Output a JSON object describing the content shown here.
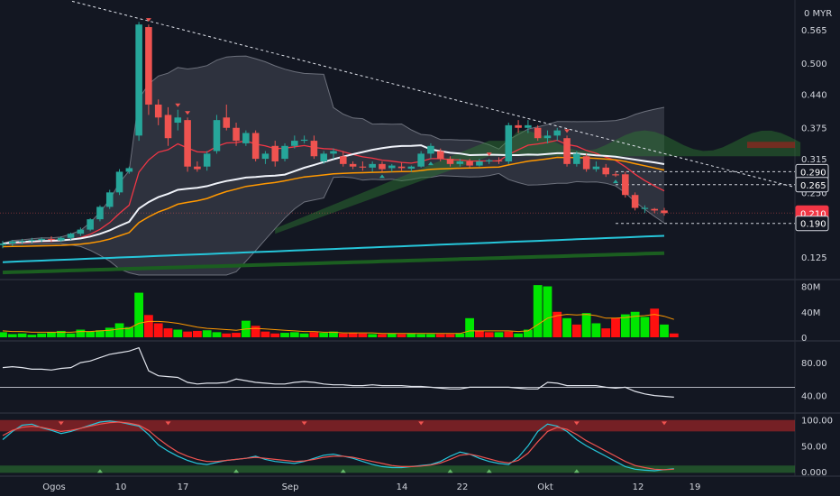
{
  "chart_data": [
    {
      "type": "candlestick",
      "pane": "price",
      "currency": "MYR",
      "yticks": [
        "0.565",
        "0.500",
        "0.440",
        "0.375",
        "0.315",
        "0.250",
        "0.190",
        "0.125"
      ],
      "ylim": [
        0.09,
        0.605
      ],
      "x_labels": [
        "Ogos",
        "10",
        "17",
        "Sep",
        "14",
        "22",
        "Okt",
        "12",
        "19"
      ],
      "price_tags": [
        {
          "label": "0.290",
          "value": 0.29,
          "style": "dark"
        },
        {
          "label": "0.265",
          "value": 0.265,
          "style": "dark"
        },
        {
          "label": "0.210",
          "value": 0.21,
          "style": "last"
        },
        {
          "label": "0.190",
          "value": 0.19,
          "style": "dark"
        }
      ],
      "candles": [
        {
          "o": 0.148,
          "h": 0.156,
          "l": 0.142,
          "c": 0.151,
          "up": true
        },
        {
          "o": 0.151,
          "h": 0.158,
          "l": 0.146,
          "c": 0.155,
          "up": true
        },
        {
          "o": 0.154,
          "h": 0.16,
          "l": 0.149,
          "c": 0.156,
          "up": true
        },
        {
          "o": 0.156,
          "h": 0.162,
          "l": 0.151,
          "c": 0.158,
          "up": true
        },
        {
          "o": 0.158,
          "h": 0.163,
          "l": 0.153,
          "c": 0.16,
          "up": true
        },
        {
          "o": 0.16,
          "h": 0.165,
          "l": 0.154,
          "c": 0.158,
          "up": false
        },
        {
          "o": 0.157,
          "h": 0.165,
          "l": 0.154,
          "c": 0.162,
          "up": true
        },
        {
          "o": 0.162,
          "h": 0.172,
          "l": 0.158,
          "c": 0.17,
          "up": true
        },
        {
          "o": 0.17,
          "h": 0.182,
          "l": 0.166,
          "c": 0.178,
          "up": true
        },
        {
          "o": 0.178,
          "h": 0.2,
          "l": 0.175,
          "c": 0.198,
          "up": true
        },
        {
          "o": 0.198,
          "h": 0.225,
          "l": 0.194,
          "c": 0.222,
          "up": true
        },
        {
          "o": 0.222,
          "h": 0.255,
          "l": 0.218,
          "c": 0.25,
          "up": true
        },
        {
          "o": 0.25,
          "h": 0.295,
          "l": 0.245,
          "c": 0.29,
          "up": true
        },
        {
          "o": 0.29,
          "h": 0.3,
          "l": 0.286,
          "c": 0.297,
          "up": true
        },
        {
          "o": 0.36,
          "h": 0.58,
          "l": 0.35,
          "c": 0.575,
          "up": true
        },
        {
          "o": 0.57,
          "h": 0.575,
          "l": 0.4,
          "c": 0.42,
          "up": false
        },
        {
          "o": 0.42,
          "h": 0.43,
          "l": 0.38,
          "c": 0.395,
          "up": false
        },
        {
          "o": 0.4,
          "h": 0.415,
          "l": 0.34,
          "c": 0.355,
          "up": false
        },
        {
          "o": 0.385,
          "h": 0.41,
          "l": 0.37,
          "c": 0.395,
          "up": true
        },
        {
          "o": 0.39,
          "h": 0.395,
          "l": 0.29,
          "c": 0.3,
          "up": false
        },
        {
          "o": 0.3,
          "h": 0.31,
          "l": 0.29,
          "c": 0.295,
          "up": false
        },
        {
          "o": 0.3,
          "h": 0.33,
          "l": 0.292,
          "c": 0.325,
          "up": true
        },
        {
          "o": 0.33,
          "h": 0.4,
          "l": 0.325,
          "c": 0.39,
          "up": true
        },
        {
          "o": 0.395,
          "h": 0.42,
          "l": 0.37,
          "c": 0.375,
          "up": false
        },
        {
          "o": 0.375,
          "h": 0.385,
          "l": 0.34,
          "c": 0.35,
          "up": false
        },
        {
          "o": 0.345,
          "h": 0.37,
          "l": 0.34,
          "c": 0.365,
          "up": true
        },
        {
          "o": 0.365,
          "h": 0.37,
          "l": 0.31,
          "c": 0.315,
          "up": false
        },
        {
          "o": 0.315,
          "h": 0.33,
          "l": 0.305,
          "c": 0.325,
          "up": true
        },
        {
          "o": 0.34,
          "h": 0.35,
          "l": 0.3,
          "c": 0.31,
          "up": false
        },
        {
          "o": 0.315,
          "h": 0.345,
          "l": 0.31,
          "c": 0.34,
          "up": true
        },
        {
          "o": 0.34,
          "h": 0.36,
          "l": 0.335,
          "c": 0.35,
          "up": true
        },
        {
          "o": 0.35,
          "h": 0.36,
          "l": 0.345,
          "c": 0.352,
          "up": true
        },
        {
          "o": 0.35,
          "h": 0.36,
          "l": 0.315,
          "c": 0.32,
          "up": false
        },
        {
          "o": 0.31,
          "h": 0.33,
          "l": 0.305,
          "c": 0.325,
          "up": true
        },
        {
          "o": 0.325,
          "h": 0.335,
          "l": 0.315,
          "c": 0.33,
          "up": true
        },
        {
          "o": 0.32,
          "h": 0.33,
          "l": 0.3,
          "c": 0.305,
          "up": false
        },
        {
          "o": 0.305,
          "h": 0.31,
          "l": 0.295,
          "c": 0.3,
          "up": false
        },
        {
          "o": 0.3,
          "h": 0.31,
          "l": 0.292,
          "c": 0.298,
          "up": false
        },
        {
          "o": 0.298,
          "h": 0.31,
          "l": 0.29,
          "c": 0.305,
          "up": true
        },
        {
          "o": 0.305,
          "h": 0.31,
          "l": 0.29,
          "c": 0.295,
          "up": false
        },
        {
          "o": 0.297,
          "h": 0.305,
          "l": 0.29,
          "c": 0.302,
          "up": true
        },
        {
          "o": 0.3,
          "h": 0.308,
          "l": 0.292,
          "c": 0.297,
          "up": false
        },
        {
          "o": 0.296,
          "h": 0.302,
          "l": 0.29,
          "c": 0.3,
          "up": true
        },
        {
          "o": 0.3,
          "h": 0.33,
          "l": 0.298,
          "c": 0.325,
          "up": true
        },
        {
          "o": 0.325,
          "h": 0.345,
          "l": 0.315,
          "c": 0.34,
          "up": true
        },
        {
          "o": 0.33,
          "h": 0.335,
          "l": 0.31,
          "c": 0.315,
          "up": false
        },
        {
          "o": 0.315,
          "h": 0.32,
          "l": 0.3,
          "c": 0.305,
          "up": false
        },
        {
          "o": 0.305,
          "h": 0.315,
          "l": 0.3,
          "c": 0.31,
          "up": true
        },
        {
          "o": 0.31,
          "h": 0.315,
          "l": 0.298,
          "c": 0.302,
          "up": false
        },
        {
          "o": 0.302,
          "h": 0.315,
          "l": 0.3,
          "c": 0.31,
          "up": true
        },
        {
          "o": 0.31,
          "h": 0.315,
          "l": 0.305,
          "c": 0.312,
          "up": true
        },
        {
          "o": 0.312,
          "h": 0.318,
          "l": 0.305,
          "c": 0.31,
          "up": false
        },
        {
          "o": 0.31,
          "h": 0.385,
          "l": 0.305,
          "c": 0.38,
          "up": true
        },
        {
          "o": 0.38,
          "h": 0.39,
          "l": 0.365,
          "c": 0.375,
          "up": false
        },
        {
          "o": 0.375,
          "h": 0.39,
          "l": 0.365,
          "c": 0.38,
          "up": true
        },
        {
          "o": 0.375,
          "h": 0.38,
          "l": 0.35,
          "c": 0.355,
          "up": false
        },
        {
          "o": 0.355,
          "h": 0.37,
          "l": 0.345,
          "c": 0.36,
          "up": true
        },
        {
          "o": 0.36,
          "h": 0.375,
          "l": 0.35,
          "c": 0.37,
          "up": true
        },
        {
          "o": 0.355,
          "h": 0.36,
          "l": 0.3,
          "c": 0.305,
          "up": false
        },
        {
          "o": 0.305,
          "h": 0.33,
          "l": 0.3,
          "c": 0.325,
          "up": true
        },
        {
          "o": 0.32,
          "h": 0.325,
          "l": 0.29,
          "c": 0.295,
          "up": false
        },
        {
          "o": 0.295,
          "h": 0.31,
          "l": 0.29,
          "c": 0.3,
          "up": true
        },
        {
          "o": 0.298,
          "h": 0.305,
          "l": 0.28,
          "c": 0.285,
          "up": false
        },
        {
          "o": 0.285,
          "h": 0.29,
          "l": 0.28,
          "c": 0.283,
          "up": false
        },
        {
          "o": 0.285,
          "h": 0.29,
          "l": 0.24,
          "c": 0.245,
          "up": false
        },
        {
          "o": 0.245,
          "h": 0.25,
          "l": 0.215,
          "c": 0.22,
          "up": false
        },
        {
          "o": 0.22,
          "h": 0.225,
          "l": 0.21,
          "c": 0.218,
          "up": true
        },
        {
          "o": 0.218,
          "h": 0.22,
          "l": 0.21,
          "c": 0.215,
          "up": false
        },
        {
          "o": 0.215,
          "h": 0.22,
          "l": 0.205,
          "c": 0.21,
          "up": false
        }
      ]
    },
    {
      "type": "bar",
      "pane": "volume",
      "yticks": [
        "80M",
        "40M",
        "0"
      ],
      "ylim": [
        0,
        85
      ],
      "values": [
        8,
        5,
        6,
        4,
        6,
        8,
        10,
        6,
        12,
        9,
        11,
        15,
        22,
        16,
        70,
        35,
        22,
        14,
        12,
        9,
        10,
        11,
        8,
        6,
        7,
        26,
        18,
        9,
        6,
        7,
        8,
        6,
        8,
        7,
        9,
        6,
        7,
        6,
        5,
        5,
        6,
        5,
        6,
        5,
        5,
        5,
        5,
        6,
        30,
        10,
        8,
        8,
        9,
        6,
        12,
        82,
        80,
        40,
        30,
        20,
        38,
        22,
        14,
        30,
        36,
        40,
        32,
        45,
        20,
        6
      ],
      "up": [
        true,
        true,
        true,
        true,
        true,
        true,
        true,
        true,
        true,
        true,
        true,
        true,
        true,
        true,
        true,
        false,
        false,
        false,
        true,
        false,
        false,
        true,
        true,
        false,
        false,
        true,
        false,
        false,
        false,
        true,
        true,
        true,
        false,
        true,
        true,
        false,
        false,
        false,
        true,
        false,
        true,
        false,
        true,
        true,
        true,
        false,
        false,
        true,
        true,
        false,
        false,
        true,
        false,
        true,
        true,
        true,
        true,
        false,
        true,
        false,
        true,
        true,
        false,
        false,
        true,
        true,
        true,
        false,
        true,
        false
      ],
      "ma": [
        10,
        9,
        9,
        8,
        8,
        8,
        8,
        8,
        9,
        9,
        10,
        11,
        13,
        14,
        22,
        25,
        25,
        24,
        22,
        19,
        16,
        14,
        13,
        12,
        11,
        13,
        14,
        13,
        12,
        11,
        10,
        9,
        9,
        8,
        8,
        7,
        7,
        7,
        7,
        6,
        6,
        6,
        6,
        6,
        6,
        6,
        6,
        6,
        10,
        10,
        10,
        10,
        10,
        9,
        10,
        20,
        30,
        34,
        36,
        35,
        36,
        34,
        30,
        30,
        31,
        33,
        34,
        36,
        33,
        28
      ]
    },
    {
      "type": "line",
      "pane": "oscillator",
      "yticks": [
        "80.00",
        "40.00"
      ],
      "ylim": [
        22,
        102
      ],
      "level": 50,
      "values": [
        74,
        75,
        74,
        72,
        72,
        71,
        73,
        74,
        80,
        82,
        86,
        90,
        92,
        94,
        98,
        70,
        64,
        63,
        62,
        56,
        54,
        55,
        55,
        56,
        60,
        58,
        56,
        55,
        54,
        54,
        56,
        57,
        56,
        54,
        53,
        53,
        52,
        52,
        53,
        52,
        52,
        52,
        51,
        51,
        50,
        49,
        48,
        48,
        50,
        50,
        50,
        50,
        50,
        49,
        48,
        48,
        56,
        55,
        52,
        52,
        52,
        52,
        50,
        49,
        50,
        45,
        42,
        40,
        39,
        38
      ]
    },
    {
      "type": "line",
      "pane": "stochastic",
      "yticks": [
        "100.00",
        "50.00",
        "0.000"
      ],
      "ylim": [
        -5,
        110
      ],
      "series": [
        {
          "values": [
            62,
            78,
            90,
            92,
            85,
            80,
            74,
            78,
            84,
            90,
            96,
            98,
            96,
            92,
            88,
            72,
            52,
            40,
            30,
            22,
            16,
            14,
            18,
            22,
            24,
            26,
            30,
            24,
            20,
            18,
            16,
            20,
            26,
            32,
            34,
            30,
            26,
            20,
            14,
            10,
            8,
            8,
            10,
            12,
            14,
            20,
            30,
            38,
            34,
            26,
            20,
            16,
            14,
            28,
            50,
            78,
            92,
            88,
            78,
            62,
            50,
            40,
            30,
            20,
            10,
            5,
            3,
            2,
            4,
            6
          ]
        },
        {
          "values": [
            70,
            80,
            86,
            88,
            86,
            82,
            78,
            80,
            84,
            88,
            92,
            95,
            96,
            94,
            90,
            80,
            64,
            50,
            38,
            30,
            24,
            20,
            20,
            22,
            24,
            26,
            28,
            26,
            24,
            22,
            20,
            21,
            24,
            28,
            30,
            30,
            28,
            24,
            20,
            16,
            12,
            10,
            10,
            11,
            13,
            17,
            24,
            32,
            34,
            30,
            25,
            20,
            17,
            22,
            36,
            58,
            78,
            86,
            82,
            72,
            60,
            50,
            40,
            30,
            20,
            12,
            8,
            5,
            4,
            5
          ]
        }
      ]
    }
  ]
}
